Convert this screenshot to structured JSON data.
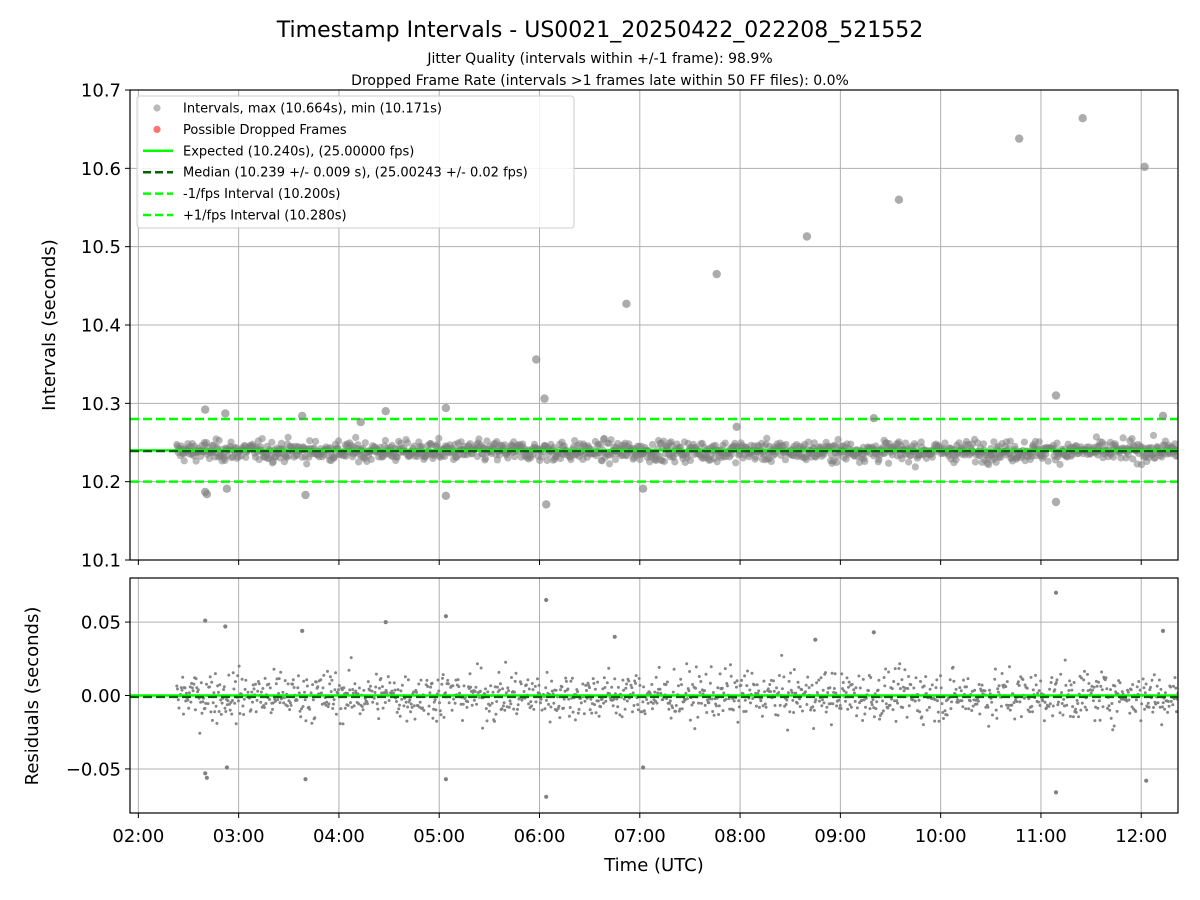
{
  "title": "Timestamp Intervals - US0021_20250422_022208_521552",
  "subtitle_1": "Jitter Quality (intervals within +/-1 frame): 98.9%",
  "subtitle_2": "Dropped Frame Rate (intervals >1 frames late within 50 FF files): 0.0%",
  "colors": {
    "points": "#808080",
    "dropped": "#ff0000",
    "expected": "#00ff00",
    "median": "#006400",
    "fps_band": "#00ff00",
    "grid": "#b0b0b0"
  },
  "chart_data": [
    {
      "type": "scatter",
      "ylabel": "Intervals (seconds)",
      "xlabel": "",
      "xlim": [
        "01:55",
        "12:22"
      ],
      "ylim": [
        10.1,
        10.7
      ],
      "yticks": [
        10.1,
        10.2,
        10.3,
        10.4,
        10.5,
        10.6,
        10.7
      ],
      "ytick_labels": [
        "10.1",
        "10.2",
        "10.3",
        "10.4",
        "10.5",
        "10.6",
        "10.7"
      ],
      "grid": true,
      "legend_position": "top-left",
      "legend": [
        {
          "label": "Intervals, max (10.664s), min (10.171s)",
          "kind": "dot",
          "color": "#808080"
        },
        {
          "label": "Possible Dropped Frames",
          "kind": "dot",
          "color": "#ff0000"
        },
        {
          "label": "Expected (10.240s), (25.00000 fps)",
          "kind": "solid",
          "color": "#00ff00"
        },
        {
          "label": "Median (10.239 +/- 0.009 s), (25.00243 +/- 0.02 fps)",
          "kind": "dashed",
          "color": "#006400"
        },
        {
          "label": "-1/fps Interval (10.200s)",
          "kind": "dashed",
          "color": "#00ff00"
        },
        {
          "label": "+1/fps Interval (10.280s)",
          "kind": "dashed",
          "color": "#00ff00"
        }
      ],
      "reference_lines": {
        "expected": 10.24,
        "median": 10.239,
        "minus_1fps": 10.2,
        "plus_1fps": 10.28
      },
      "band_summary": {
        "x_start": "02:23",
        "x_end": "12:22",
        "center": 10.239,
        "spread": 0.009
      },
      "series": [
        {
          "name": "Intervals",
          "points": [
            [
              "02:40",
              10.292
            ],
            [
              "02:52",
              10.287
            ],
            [
              "02:40",
              10.187
            ],
            [
              "02:41",
              10.184
            ],
            [
              "02:53",
              10.191
            ],
            [
              "03:38",
              10.284
            ],
            [
              "03:40",
              10.183
            ],
            [
              "04:28",
              10.29
            ],
            [
              "05:04",
              10.294
            ],
            [
              "05:04",
              10.182
            ],
            [
              "05:58",
              10.356
            ],
            [
              "06:03",
              10.306
            ],
            [
              "06:04",
              10.171
            ],
            [
              "06:52",
              10.427
            ],
            [
              "07:02",
              10.191
            ],
            [
              "07:46",
              10.465
            ],
            [
              "08:40",
              10.513
            ],
            [
              "09:35",
              10.56
            ],
            [
              "10:47",
              10.638
            ],
            [
              "11:09",
              10.31
            ],
            [
              "11:09",
              10.174
            ],
            [
              "11:25",
              10.664
            ],
            [
              "12:02",
              10.602
            ],
            [
              "12:13",
              10.284
            ],
            [
              "04:13",
              10.276
            ],
            [
              "07:58",
              10.27
            ],
            [
              "09:20",
              10.281
            ]
          ]
        }
      ]
    },
    {
      "type": "scatter",
      "ylabel": "Residuals (seconds)",
      "xlabel": "Time (UTC)",
      "xlim": [
        "01:55",
        "12:22"
      ],
      "ylim": [
        -0.08,
        0.08
      ],
      "yticks": [
        -0.05,
        0.0,
        0.05
      ],
      "ytick_labels": [
        "−0.05",
        "0.00",
        "0.05"
      ],
      "xticks": [
        "02:00",
        "03:00",
        "04:00",
        "05:00",
        "06:00",
        "07:00",
        "08:00",
        "09:00",
        "10:00",
        "11:00",
        "12:00"
      ],
      "grid": true,
      "reference_lines": {
        "expected": 0.0,
        "median": -0.001
      },
      "band_summary": {
        "x_start": "02:23",
        "x_end": "12:22",
        "center": 0.0,
        "spread": 0.012
      },
      "series": [
        {
          "name": "Residuals",
          "points": [
            [
              "02:40",
              0.051
            ],
            [
              "02:52",
              0.047
            ],
            [
              "02:40",
              -0.053
            ],
            [
              "02:41",
              -0.056
            ],
            [
              "02:53",
              -0.049
            ],
            [
              "03:38",
              0.044
            ],
            [
              "03:40",
              -0.057
            ],
            [
              "04:28",
              0.05
            ],
            [
              "05:04",
              0.054
            ],
            [
              "05:04",
              -0.057
            ],
            [
              "06:04",
              0.065
            ],
            [
              "06:04",
              -0.069
            ],
            [
              "07:02",
              -0.049
            ],
            [
              "11:09",
              0.07
            ],
            [
              "11:09",
              -0.066
            ],
            [
              "12:03",
              -0.058
            ],
            [
              "12:13",
              0.044
            ],
            [
              "09:20",
              0.043
            ],
            [
              "08:45",
              0.038
            ],
            [
              "06:45",
              0.04
            ]
          ]
        }
      ]
    }
  ]
}
